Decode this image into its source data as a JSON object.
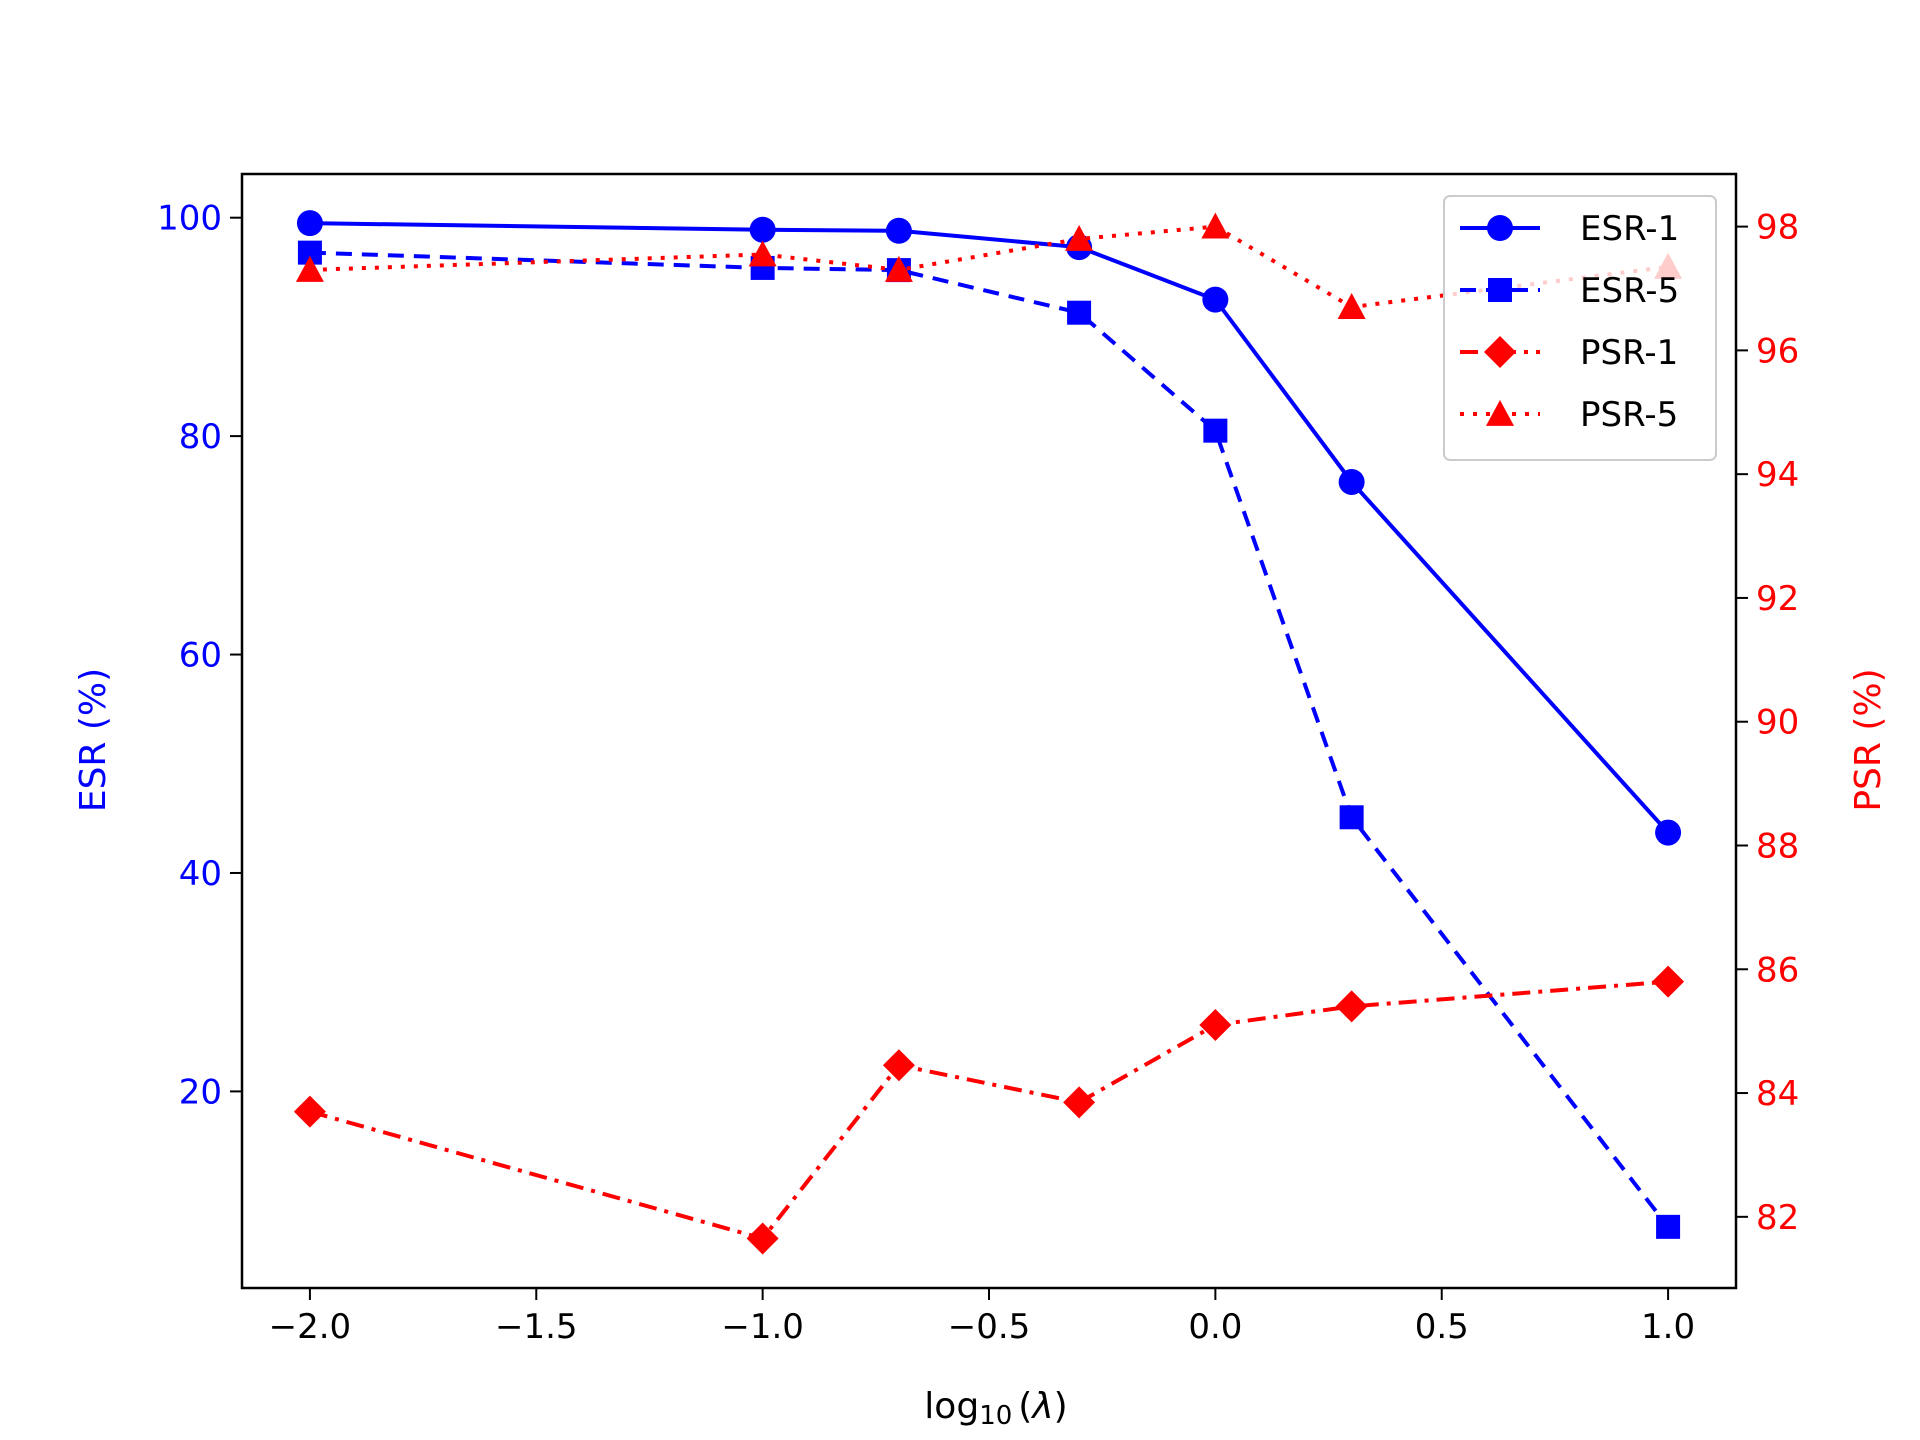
{
  "chart_data": {
    "type": "line",
    "title": "",
    "xlabel_base": "log",
    "xlabel_sub": "10",
    "xlabel_rest": "(",
    "xlabel_var": "λ",
    "xlabel_close": ")",
    "ylabel_left": "ESR (%)",
    "ylabel_right": "PSR (%)",
    "x": [
      -2.0,
      -1.0,
      -0.699,
      -0.301,
      0.0,
      0.301,
      1.0
    ],
    "xlim": [
      -2.15,
      1.15
    ],
    "ylim_left": [
      2.0,
      104.0
    ],
    "ylim_right": [
      80.85,
      98.85
    ],
    "x_ticks": [
      -2.0,
      -1.5,
      -1.0,
      -0.5,
      0.0,
      0.5,
      1.0
    ],
    "x_tick_labels": [
      "−2.0",
      "−1.5",
      "−1.0",
      "−0.5",
      "0.0",
      "0.5",
      "1.0"
    ],
    "y_left_ticks": [
      20,
      40,
      60,
      80,
      100
    ],
    "y_left_tick_labels": [
      "20",
      "40",
      "60",
      "80",
      "100"
    ],
    "y_right_ticks": [
      82,
      84,
      86,
      88,
      90,
      92,
      94,
      96,
      98
    ],
    "y_right_tick_labels": [
      "82",
      "84",
      "86",
      "88",
      "90",
      "92",
      "94",
      "96",
      "98"
    ],
    "legend_position": "top-right",
    "series": [
      {
        "name": "ESR-1",
        "axis": "left",
        "color": "#0000ff",
        "marker": "circle",
        "linestyle": "solid",
        "values": [
          99.5,
          98.9,
          98.8,
          97.3,
          92.5,
          75.8,
          43.7
        ]
      },
      {
        "name": "ESR-5",
        "axis": "left",
        "color": "#0000ff",
        "marker": "square",
        "linestyle": "dashed",
        "values": [
          96.8,
          95.4,
          95.2,
          91.3,
          80.5,
          45.1,
          7.6
        ]
      },
      {
        "name": "PSR-1",
        "axis": "right",
        "color": "#ff0000",
        "marker": "diamond",
        "linestyle": "dashdot",
        "values": [
          83.7,
          81.65,
          84.45,
          83.85,
          85.1,
          85.4,
          85.8
        ]
      },
      {
        "name": "PSR-5",
        "axis": "right",
        "color": "#ff0000",
        "marker": "triangle",
        "linestyle": "dotted",
        "values": [
          97.3,
          97.55,
          97.3,
          97.8,
          98.0,
          96.7,
          97.35
        ]
      }
    ]
  }
}
